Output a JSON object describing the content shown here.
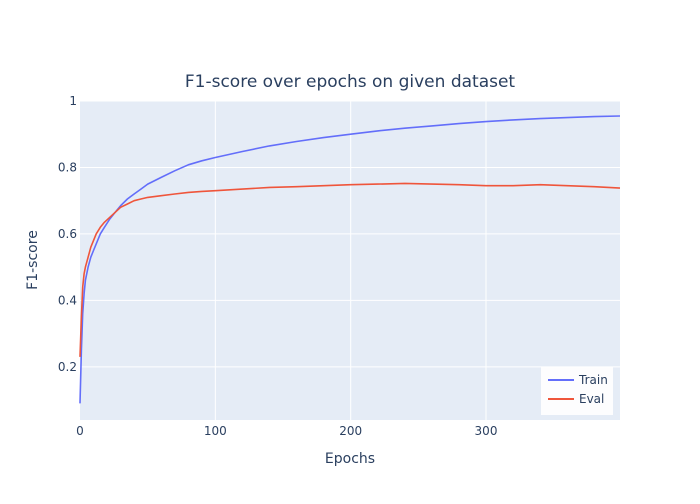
{
  "chart_data": {
    "type": "line",
    "title": "F1-score over epochs on given dataset",
    "xlabel": "Epochs",
    "ylabel": "F1-score",
    "xlim": [
      0,
      399
    ],
    "ylim": [
      0.04,
      1.0
    ],
    "x_ticks": [
      0,
      100,
      200,
      300
    ],
    "y_ticks": [
      0.2,
      0.4,
      0.6,
      0.8,
      1
    ],
    "grid": true,
    "legend_position": "bottom-right",
    "background_color": "#e5ecf6",
    "series": [
      {
        "name": "Train",
        "color": "#636efa",
        "x": [
          0,
          1,
          2,
          3,
          4,
          6,
          8,
          10,
          12,
          15,
          18,
          22,
          26,
          30,
          35,
          40,
          45,
          50,
          60,
          70,
          80,
          90,
          100,
          120,
          140,
          160,
          180,
          200,
          220,
          240,
          260,
          280,
          300,
          320,
          340,
          360,
          380,
          399
        ],
        "values": [
          0.09,
          0.25,
          0.36,
          0.42,
          0.46,
          0.5,
          0.53,
          0.55,
          0.57,
          0.6,
          0.62,
          0.645,
          0.665,
          0.685,
          0.705,
          0.72,
          0.735,
          0.75,
          0.77,
          0.79,
          0.808,
          0.82,
          0.83,
          0.848,
          0.865,
          0.878,
          0.89,
          0.9,
          0.91,
          0.918,
          0.925,
          0.932,
          0.938,
          0.943,
          0.947,
          0.95,
          0.953,
          0.955
        ]
      },
      {
        "name": "Eval",
        "color": "#ef553b",
        "x": [
          0,
          1,
          2,
          3,
          4,
          6,
          8,
          10,
          12,
          15,
          18,
          22,
          26,
          30,
          35,
          40,
          45,
          50,
          60,
          70,
          80,
          90,
          100,
          120,
          140,
          160,
          180,
          200,
          220,
          240,
          260,
          280,
          300,
          320,
          340,
          360,
          380,
          399
        ],
        "values": [
          0.23,
          0.35,
          0.44,
          0.48,
          0.5,
          0.53,
          0.56,
          0.58,
          0.6,
          0.62,
          0.635,
          0.65,
          0.665,
          0.68,
          0.69,
          0.7,
          0.705,
          0.71,
          0.715,
          0.72,
          0.725,
          0.728,
          0.73,
          0.735,
          0.74,
          0.742,
          0.745,
          0.748,
          0.75,
          0.752,
          0.75,
          0.748,
          0.745,
          0.745,
          0.748,
          0.745,
          0.742,
          0.738
        ]
      }
    ]
  }
}
